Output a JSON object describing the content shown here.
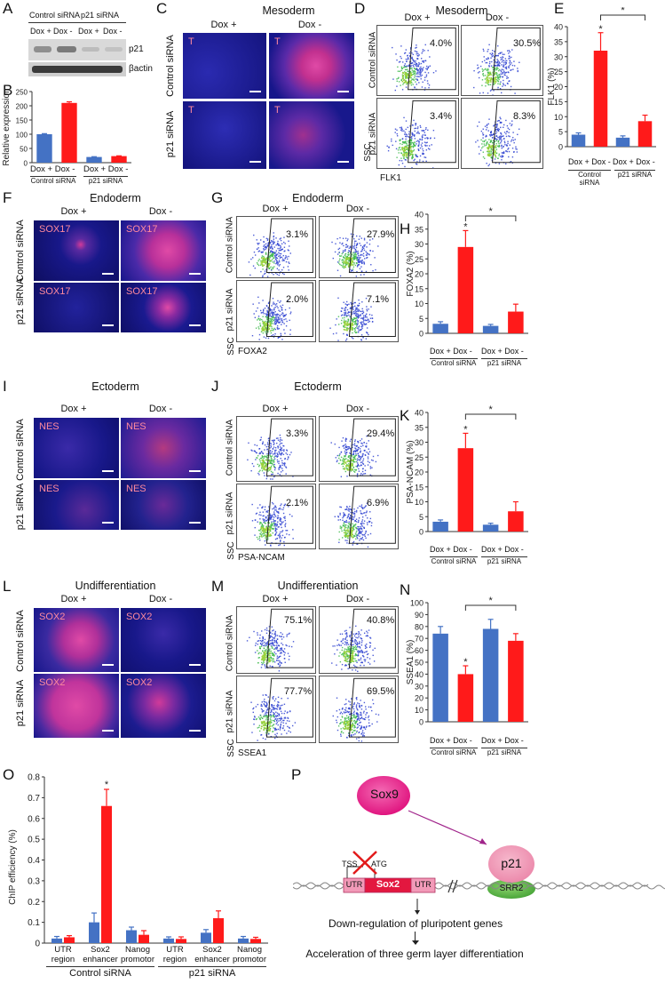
{
  "panel_letters": [
    "A",
    "B",
    "C",
    "D",
    "E",
    "F",
    "G",
    "H",
    "I",
    "J",
    "K",
    "L",
    "M",
    "N",
    "O",
    "P"
  ],
  "colors": {
    "dox_plus": "#4472c4",
    "dox_minus": "#ff1a1a",
    "bg_stain": "#1a1a9a",
    "marker_stain": "#e0389a"
  },
  "common": {
    "control_sirna": "Control siRNA",
    "p21_sirna": "p21 siRNA",
    "dox_plus": "Dox +",
    "dox_minus": "Dox -",
    "dox_pair": "Dox + Dox -",
    "ssc": "SSC",
    "star": "*"
  },
  "panelA": {
    "group_labels": [
      "Control siRNA",
      "p21 siRNA"
    ],
    "lane_labels": [
      "Dox +",
      "Dox -",
      "Dox +",
      "Dox -"
    ],
    "rows": [
      "p21",
      "βactin"
    ]
  },
  "panelB": {
    "ylabel": "Relative expression",
    "yticks": [
      "0",
      "50",
      "100",
      "150",
      "200",
      "250"
    ],
    "xlabels": [
      "Dox + Dox -",
      "Dox + Dox -"
    ],
    "groups": [
      "Control siRNA",
      "p21 siRNA"
    ]
  },
  "panelC": {
    "title": "Mesoderm",
    "marker": "T"
  },
  "panelD": {
    "title": "Mesoderm",
    "xaxis": "FLK1",
    "pcts": [
      "4.0%",
      "30.5%",
      "3.4%",
      "8.3%"
    ]
  },
  "panelE": {
    "ylabel": "FLK1 (%)"
  },
  "panelF": {
    "title": "Endoderm",
    "marker": "SOX17"
  },
  "panelG": {
    "title": "Endoderm",
    "xaxis": "FOXA2",
    "pcts": [
      "3.1%",
      "27.9%",
      "2.0%",
      "7.1%"
    ]
  },
  "panelH": {
    "ylabel": "FOXA2 (%)"
  },
  "panelI": {
    "title": "Ectoderm",
    "marker": "NES"
  },
  "panelJ": {
    "title": "Ectoderm",
    "xaxis": "PSA-NCAM",
    "pcts": [
      "3.3%",
      "29.4%",
      "2.1%",
      "6.9%"
    ]
  },
  "panelK": {
    "ylabel": "PSA-NCAM (%)"
  },
  "panelL": {
    "title": "Undifferentiation",
    "marker": "SOX2"
  },
  "panelM": {
    "title": "Undifferentiation",
    "xaxis": "SSEA1",
    "pcts": [
      "75.1%",
      "40.8%",
      "77.7%",
      "69.5%"
    ]
  },
  "panelN": {
    "ylabel": "SSEA1 (%)"
  },
  "panelO": {
    "ylabel": "ChIP efficiency (%)",
    "regions": [
      "UTR\nregion",
      "Sox2\nenhancer",
      "Nanog\npromotor",
      "UTR\nregion",
      "Sox2\nenhancer",
      "Nanog\npromotor"
    ],
    "groups": [
      "Control siRNA",
      "p21 siRNA"
    ]
  },
  "panelP": {
    "sox9": "Sox9",
    "p21": "p21",
    "srr2": "SRR2",
    "sox2": "Sox2",
    "utr": "UTR",
    "tss": "TSS",
    "atg": "ATG",
    "step1": "Down-regulation of pluripotent genes",
    "step2": "Acceleration of three germ layer differentiation"
  },
  "chart_data": [
    {
      "type": "bar",
      "panel": "B",
      "categories": [
        "Control siRNA Dox +",
        "Control siRNA Dox -",
        "p21 siRNA Dox +",
        "p21 siRNA Dox -"
      ],
      "values": [
        100,
        210,
        20,
        23
      ],
      "errors": [
        2,
        4,
        1,
        1
      ],
      "ylim": [
        0,
        250
      ],
      "yticks": [
        0,
        50,
        100,
        150,
        200,
        250
      ],
      "ylabel": "Relative expression"
    },
    {
      "type": "bar",
      "panel": "E",
      "categories": [
        "Control siRNA Dox +",
        "Control siRNA Dox -",
        "p21 siRNA Dox +",
        "p21 siRNA Dox -"
      ],
      "values": [
        4,
        32,
        3,
        8.5
      ],
      "errors": [
        0.6,
        6,
        0.6,
        2
      ],
      "ylim": [
        0,
        40
      ],
      "yticks": [
        0,
        5,
        10,
        15,
        20,
        25,
        30,
        35,
        40
      ],
      "ylabel": "FLK1 (%)"
    },
    {
      "type": "bar",
      "panel": "H",
      "categories": [
        "Control siRNA Dox +",
        "Control siRNA Dox -",
        "p21 siRNA Dox +",
        "p21 siRNA Dox -"
      ],
      "values": [
        3.2,
        29,
        2.5,
        7.3
      ],
      "errors": [
        0.7,
        5.5,
        0.5,
        2.5
      ],
      "ylim": [
        0,
        40
      ],
      "yticks": [
        0,
        5,
        10,
        15,
        20,
        25,
        30,
        35,
        40
      ],
      "ylabel": "FOXA2 (%)"
    },
    {
      "type": "bar",
      "panel": "K",
      "categories": [
        "Control siRNA Dox +",
        "Control siRNA Dox -",
        "p21 siRNA Dox +",
        "p21 siRNA Dox -"
      ],
      "values": [
        3.3,
        28,
        2.3,
        6.8
      ],
      "errors": [
        0.6,
        5,
        0.5,
        3.2
      ],
      "ylim": [
        0,
        40
      ],
      "yticks": [
        0,
        5,
        10,
        15,
        20,
        25,
        30,
        35,
        40
      ],
      "ylabel": "PSA-NCAM (%)"
    },
    {
      "type": "bar",
      "panel": "N",
      "categories": [
        "Control siRNA Dox +",
        "Control siRNA Dox -",
        "p21 siRNA Dox +",
        "p21 siRNA Dox -"
      ],
      "values": [
        74,
        40,
        78,
        68
      ],
      "errors": [
        6,
        7,
        8,
        6
      ],
      "ylim": [
        0,
        100
      ],
      "yticks": [
        0,
        10,
        20,
        30,
        40,
        50,
        60,
        70,
        80,
        90,
        100
      ],
      "ylabel": "SSEA1 (%)"
    },
    {
      "type": "bar",
      "panel": "O",
      "categories": [
        "Control UTR region",
        "Control Sox2 enhancer",
        "Control Nanog promotor",
        "p21 UTR region",
        "p21 Sox2 enhancer",
        "p21 Nanog promotor"
      ],
      "series": [
        {
          "name": "Dox +",
          "values": [
            0.022,
            0.1,
            0.062,
            0.022,
            0.05,
            0.022
          ],
          "errors": [
            0.01,
            0.045,
            0.015,
            0.008,
            0.015,
            0.01
          ]
        },
        {
          "name": "Dox -",
          "values": [
            0.028,
            0.66,
            0.04,
            0.02,
            0.12,
            0.02
          ],
          "errors": [
            0.008,
            0.08,
            0.02,
            0.01,
            0.035,
            0.008
          ]
        }
      ],
      "ylim": [
        0,
        0.8
      ],
      "yticks": [
        "0",
        "0.1",
        "0.2",
        "0.3",
        "0.4",
        "0.5",
        "0.6",
        "0.7",
        "0.8"
      ],
      "ylabel": "ChIP efficiency (%)"
    }
  ]
}
